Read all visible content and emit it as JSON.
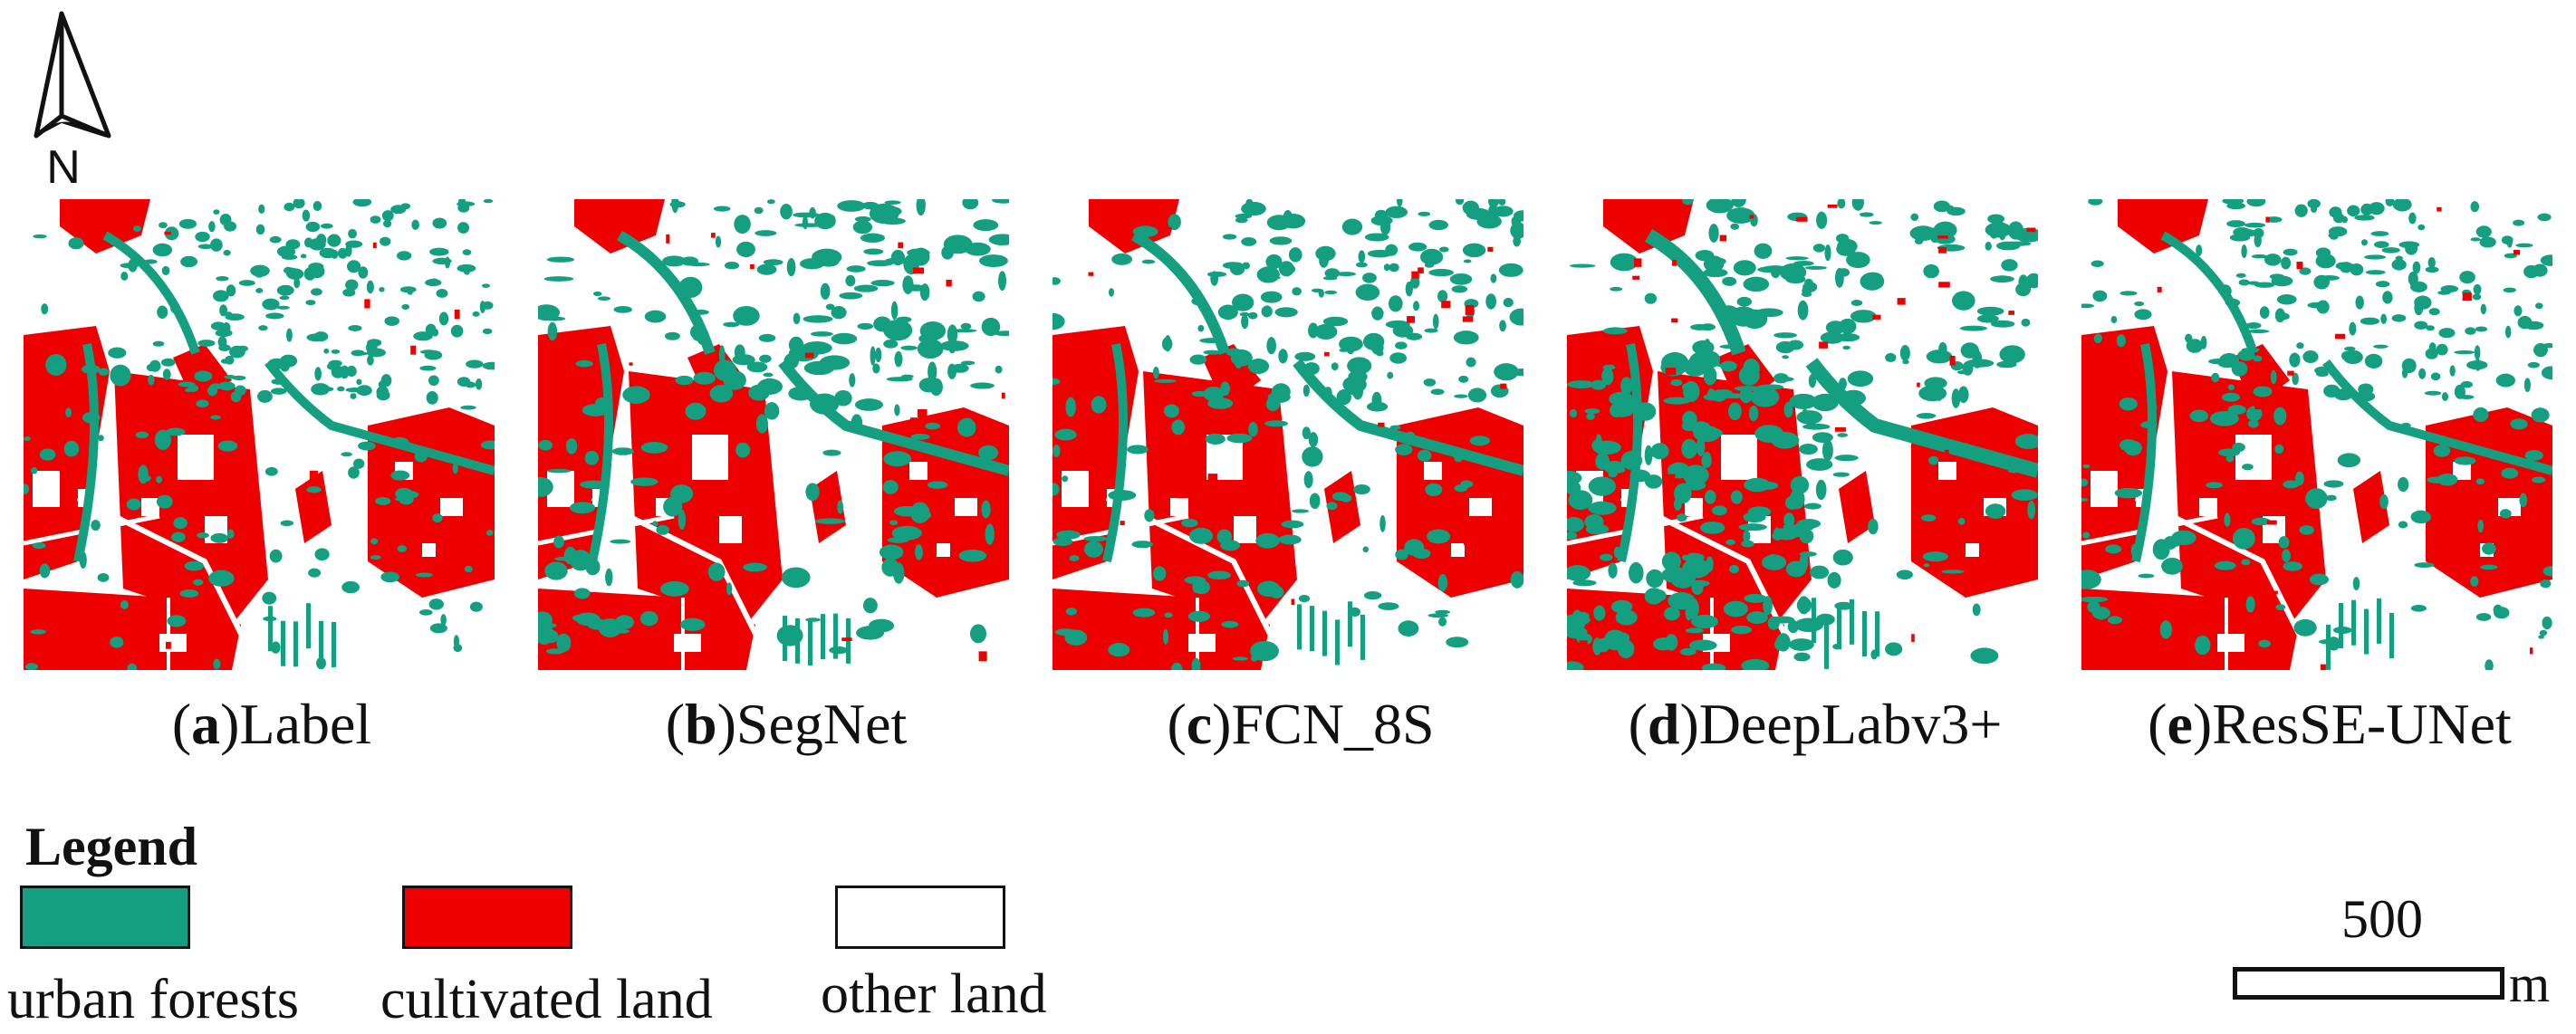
{
  "north_arrow": {
    "label": "N"
  },
  "colors": {
    "urban_forests": "#14a080",
    "cultivated_land": "#ee0000",
    "other_land": "#ffffff"
  },
  "panels": [
    {
      "letter": "a",
      "name": ")Label"
    },
    {
      "letter": "b",
      "name": ")SegNet"
    },
    {
      "letter": "c",
      "name": ")FCN_8S"
    },
    {
      "letter": "d",
      "name": ")DeepLabv3+"
    },
    {
      "letter": "e",
      "name": ")ResSE-UNet"
    }
  ],
  "legend": {
    "title": "Legend",
    "items": [
      {
        "label": "urban forests",
        "color": "#14a080"
      },
      {
        "label": "cultivated land",
        "color": "#ee0000"
      },
      {
        "label": "other land",
        "color": "#ffffff"
      }
    ]
  },
  "scale_bar": {
    "value": "500",
    "unit": "m"
  }
}
